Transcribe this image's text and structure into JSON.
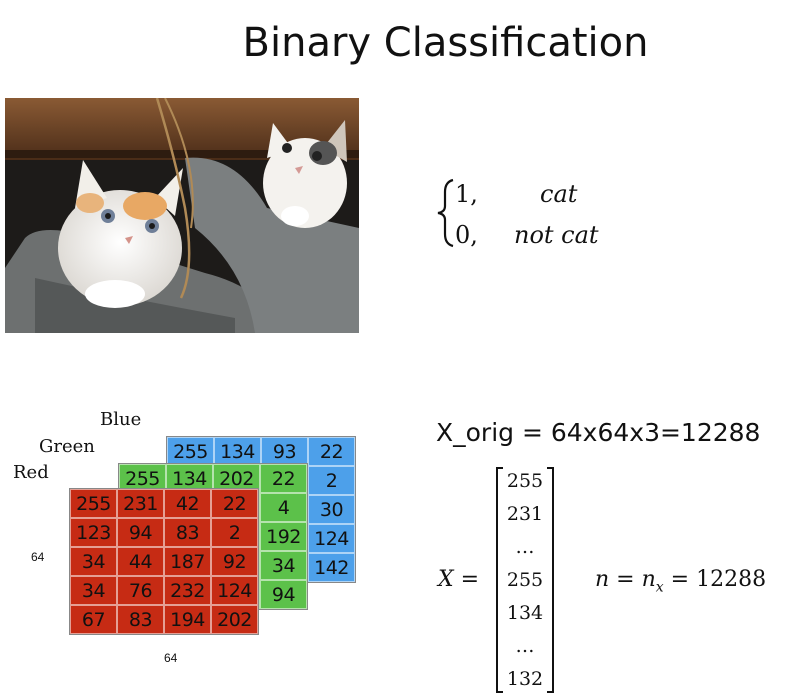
{
  "title": "Binary Classification",
  "label_cases": {
    "row1_num": "1,",
    "row1_label": "cat",
    "row2_num": "0,",
    "row2_label": "not cat"
  },
  "channels": {
    "blue_label": "Blue",
    "green_label": "Green",
    "red_label": "Red",
    "blue_cells": [
      "255",
      "134",
      "93",
      "22",
      "",
      "",
      "",
      "2",
      "",
      "",
      "",
      "30",
      "",
      "",
      "",
      "124",
      "",
      "",
      "",
      "142"
    ],
    "green_cells": [
      "255",
      "134",
      "202",
      "22",
      "",
      "",
      "",
      "4",
      "",
      "",
      "",
      "192",
      "",
      "",
      "",
      "34",
      "",
      "",
      "",
      "94"
    ],
    "red_cells": [
      "255",
      "231",
      "42",
      "22",
      "123",
      "94",
      "83",
      "2",
      "34",
      "44",
      "187",
      "92",
      "34",
      "76",
      "232",
      "124",
      "67",
      "83",
      "194",
      "202"
    ],
    "height_label": "64",
    "width_label": "64"
  },
  "xorig_text": "X_orig = 64x64x3=12288",
  "vector": {
    "lhs": "X =",
    "entries": [
      "255",
      "231",
      "…",
      "255",
      "134",
      "…",
      "132"
    ],
    "n_eq": "n = nx = 12288"
  },
  "colors": {
    "blue": "#4da0ea",
    "green": "#5cc14a",
    "red": "#c62b14"
  }
}
